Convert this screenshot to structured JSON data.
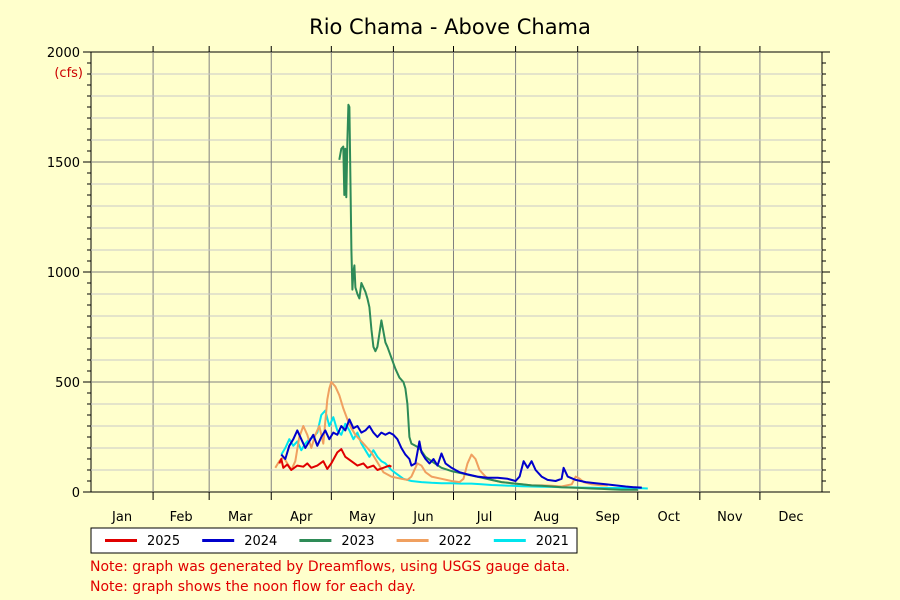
{
  "chart_data": {
    "type": "line",
    "title": "Rio Chama - Above Chama",
    "ylabel_unit": "(cfs)",
    "ylim": [
      0,
      2000
    ],
    "y_ticks": [
      "0",
      "500",
      "1000",
      "1500",
      "2000"
    ],
    "x_ticks": [
      "Jan",
      "Feb",
      "Mar",
      "Apr",
      "May",
      "Jun",
      "Jul",
      "Aug",
      "Sep",
      "Oct",
      "Nov",
      "Dec"
    ],
    "x_unit": "day of year",
    "grid": true,
    "legend_placement": "bottom",
    "series": [
      {
        "name": "2025",
        "color": "#e00000",
        "points": [
          [
            94,
            130
          ],
          [
            95,
            150
          ],
          [
            96,
            110
          ],
          [
            98,
            125
          ],
          [
            100,
            100
          ],
          [
            103,
            120
          ],
          [
            106,
            115
          ],
          [
            108,
            130
          ],
          [
            110,
            110
          ],
          [
            113,
            120
          ],
          [
            116,
            140
          ],
          [
            118,
            105
          ],
          [
            120,
            130
          ],
          [
            123,
            180
          ],
          [
            125,
            195
          ],
          [
            127,
            160
          ],
          [
            130,
            140
          ],
          [
            133,
            120
          ],
          [
            136,
            130
          ],
          [
            138,
            110
          ],
          [
            141,
            120
          ],
          [
            143,
            100
          ],
          [
            146,
            110
          ],
          [
            149,
            120
          ],
          [
            150,
            115
          ]
        ]
      },
      {
        "name": "2024",
        "color": "#0000cc",
        "points": [
          [
            95,
            170
          ],
          [
            97,
            150
          ],
          [
            99,
            210
          ],
          [
            101,
            240
          ],
          [
            103,
            280
          ],
          [
            105,
            240
          ],
          [
            107,
            200
          ],
          [
            109,
            230
          ],
          [
            111,
            260
          ],
          [
            113,
            210
          ],
          [
            115,
            250
          ],
          [
            117,
            280
          ],
          [
            119,
            240
          ],
          [
            121,
            270
          ],
          [
            123,
            260
          ],
          [
            125,
            300
          ],
          [
            127,
            280
          ],
          [
            129,
            330
          ],
          [
            131,
            290
          ],
          [
            133,
            300
          ],
          [
            135,
            270
          ],
          [
            137,
            280
          ],
          [
            139,
            300
          ],
          [
            141,
            270
          ],
          [
            143,
            250
          ],
          [
            145,
            270
          ],
          [
            147,
            260
          ],
          [
            149,
            270
          ],
          [
            151,
            260
          ],
          [
            153,
            240
          ],
          [
            155,
            200
          ],
          [
            157,
            170
          ],
          [
            159,
            150
          ],
          [
            160,
            120
          ],
          [
            162,
            130
          ],
          [
            164,
            230
          ],
          [
            165,
            180
          ],
          [
            167,
            150
          ],
          [
            169,
            130
          ],
          [
            171,
            150
          ],
          [
            173,
            120
          ],
          [
            175,
            175
          ],
          [
            177,
            130
          ],
          [
            180,
            110
          ],
          [
            184,
            90
          ],
          [
            188,
            80
          ],
          [
            193,
            70
          ],
          [
            198,
            65
          ],
          [
            203,
            65
          ],
          [
            208,
            60
          ],
          [
            212,
            50
          ],
          [
            214,
            70
          ],
          [
            216,
            140
          ],
          [
            218,
            110
          ],
          [
            220,
            140
          ],
          [
            222,
            100
          ],
          [
            225,
            70
          ],
          [
            228,
            55
          ],
          [
            232,
            50
          ],
          [
            235,
            60
          ],
          [
            236,
            110
          ],
          [
            238,
            70
          ],
          [
            242,
            55
          ],
          [
            247,
            45
          ],
          [
            252,
            40
          ],
          [
            257,
            35
          ],
          [
            262,
            30
          ],
          [
            267,
            25
          ],
          [
            271,
            22
          ],
          [
            275,
            20
          ]
        ]
      },
      {
        "name": "2023",
        "color": "#2e8b57",
        "points": [
          [
            124,
            1510
          ],
          [
            125,
            1560
          ],
          [
            126,
            1570
          ],
          [
            126.5,
            1350
          ],
          [
            127,
            1560
          ],
          [
            127.5,
            1340
          ],
          [
            128,
            1600
          ],
          [
            128.5,
            1760
          ],
          [
            129,
            1750
          ],
          [
            130,
            1100
          ],
          [
            130.5,
            920
          ],
          [
            131,
            1000
          ],
          [
            131.5,
            1030
          ],
          [
            132,
            930
          ],
          [
            133,
            900
          ],
          [
            134,
            880
          ],
          [
            135,
            950
          ],
          [
            136,
            930
          ],
          [
            137,
            910
          ],
          [
            138,
            880
          ],
          [
            139,
            840
          ],
          [
            140,
            740
          ],
          [
            141,
            660
          ],
          [
            142,
            640
          ],
          [
            143,
            660
          ],
          [
            144,
            720
          ],
          [
            145,
            780
          ],
          [
            146,
            730
          ],
          [
            147,
            680
          ],
          [
            148,
            660
          ],
          [
            150,
            610
          ],
          [
            152,
            560
          ],
          [
            154,
            520
          ],
          [
            156,
            500
          ],
          [
            157,
            470
          ],
          [
            158,
            400
          ],
          [
            159,
            250
          ],
          [
            160,
            220
          ],
          [
            162,
            210
          ],
          [
            164,
            200
          ],
          [
            167,
            160
          ],
          [
            170,
            140
          ],
          [
            175,
            110
          ],
          [
            180,
            95
          ],
          [
            185,
            85
          ],
          [
            190,
            75
          ],
          [
            195,
            65
          ],
          [
            200,
            55
          ],
          [
            205,
            45
          ],
          [
            210,
            40
          ],
          [
            215,
            35
          ],
          [
            220,
            30
          ],
          [
            225,
            28
          ],
          [
            230,
            25
          ],
          [
            235,
            22
          ],
          [
            240,
            20
          ],
          [
            245,
            18
          ],
          [
            250,
            16
          ],
          [
            255,
            14
          ],
          [
            260,
            12
          ],
          [
            265,
            10
          ],
          [
            270,
            10
          ],
          [
            273,
            10
          ]
        ]
      },
      {
        "name": "2022",
        "color": "#f0a060",
        "points": [
          [
            92,
            110
          ],
          [
            94,
            140
          ],
          [
            96,
            160
          ],
          [
            98,
            130
          ],
          [
            100,
            100
          ],
          [
            102,
            140
          ],
          [
            104,
            250
          ],
          [
            106,
            300
          ],
          [
            108,
            260
          ],
          [
            110,
            200
          ],
          [
            112,
            260
          ],
          [
            114,
            300
          ],
          [
            116,
            220
          ],
          [
            118,
            420
          ],
          [
            119,
            470
          ],
          [
            120,
            500
          ],
          [
            122,
            480
          ],
          [
            124,
            440
          ],
          [
            126,
            380
          ],
          [
            128,
            330
          ],
          [
            130,
            290
          ],
          [
            132,
            260
          ],
          [
            134,
            240
          ],
          [
            136,
            220
          ],
          [
            138,
            200
          ],
          [
            140,
            180
          ],
          [
            142,
            150
          ],
          [
            144,
            120
          ],
          [
            146,
            90
          ],
          [
            150,
            70
          ],
          [
            155,
            60
          ],
          [
            158,
            55
          ],
          [
            160,
            70
          ],
          [
            163,
            130
          ],
          [
            165,
            120
          ],
          [
            167,
            90
          ],
          [
            170,
            70
          ],
          [
            175,
            60
          ],
          [
            180,
            50
          ],
          [
            184,
            45
          ],
          [
            186,
            60
          ],
          [
            188,
            130
          ],
          [
            190,
            170
          ],
          [
            192,
            150
          ],
          [
            194,
            100
          ],
          [
            197,
            70
          ],
          [
            200,
            55
          ],
          [
            205,
            45
          ],
          [
            210,
            40
          ],
          [
            215,
            35
          ],
          [
            220,
            30
          ],
          [
            225,
            30
          ],
          [
            230,
            28
          ],
          [
            235,
            25
          ],
          [
            240,
            35
          ],
          [
            242,
            70
          ],
          [
            244,
            60
          ],
          [
            246,
            45
          ],
          [
            250,
            35
          ],
          [
            255,
            30
          ],
          [
            258,
            30
          ]
        ]
      },
      {
        "name": "2021",
        "color": "#00e5ee",
        "points": [
          [
            95,
            170
          ],
          [
            97,
            200
          ],
          [
            99,
            240
          ],
          [
            101,
            210
          ],
          [
            103,
            230
          ],
          [
            105,
            190
          ],
          [
            107,
            220
          ],
          [
            109,
            240
          ],
          [
            111,
            250
          ],
          [
            113,
            270
          ],
          [
            115,
            350
          ],
          [
            117,
            370
          ],
          [
            119,
            300
          ],
          [
            121,
            340
          ],
          [
            123,
            280
          ],
          [
            125,
            260
          ],
          [
            127,
            310
          ],
          [
            129,
            280
          ],
          [
            131,
            240
          ],
          [
            133,
            270
          ],
          [
            135,
            220
          ],
          [
            137,
            190
          ],
          [
            139,
            160
          ],
          [
            141,
            190
          ],
          [
            143,
            160
          ],
          [
            145,
            140
          ],
          [
            147,
            130
          ],
          [
            150,
            100
          ],
          [
            153,
            80
          ],
          [
            156,
            60
          ],
          [
            160,
            50
          ],
          [
            165,
            45
          ],
          [
            170,
            42
          ],
          [
            175,
            40
          ],
          [
            180,
            40
          ],
          [
            185,
            38
          ],
          [
            190,
            38
          ],
          [
            195,
            35
          ],
          [
            200,
            32
          ],
          [
            205,
            30
          ],
          [
            210,
            28
          ],
          [
            215,
            26
          ],
          [
            220,
            25
          ],
          [
            225,
            24
          ],
          [
            230,
            23
          ],
          [
            235,
            22
          ],
          [
            240,
            21
          ],
          [
            245,
            20
          ],
          [
            250,
            19
          ],
          [
            255,
            18
          ],
          [
            260,
            18
          ],
          [
            265,
            18
          ],
          [
            270,
            17
          ],
          [
            275,
            17
          ],
          [
            278,
            16
          ]
        ]
      }
    ]
  },
  "notes": [
    "Note: graph was generated by Dreamflows, using USGS gauge data.",
    "Note: graph shows the noon flow for each day."
  ]
}
